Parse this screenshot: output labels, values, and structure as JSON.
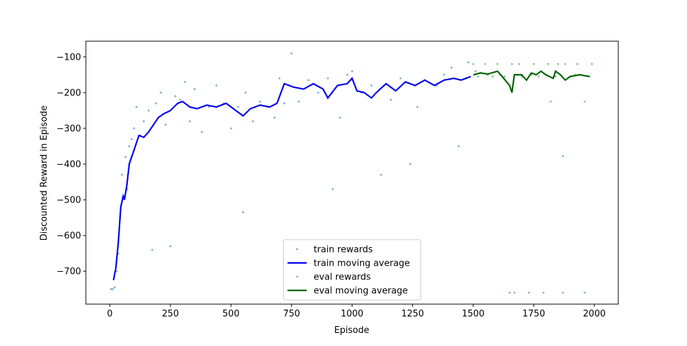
{
  "chart_data": {
    "type": "line",
    "xlabel": "Episode",
    "ylabel": "Discounted Reward in Episode",
    "xlim": [
      -99,
      2099
    ],
    "ylim": [
      -792,
      -56
    ],
    "xticks": [
      0,
      250,
      500,
      750,
      1000,
      1250,
      1500,
      1750,
      2000
    ],
    "yticks": [
      {
        "value": -100,
        "label": "−100"
      },
      {
        "value": -200,
        "label": "−200"
      },
      {
        "value": -300,
        "label": "−300"
      },
      {
        "value": -400,
        "label": "−400"
      },
      {
        "value": -500,
        "label": "−500"
      },
      {
        "value": -600,
        "label": "−600"
      },
      {
        "value": -700,
        "label": "−700"
      }
    ],
    "legend": "lower center",
    "series": [
      {
        "name": "train rewards",
        "type": "scatter",
        "color": "#1f77b4",
        "x": [
          5,
          12,
          20,
          28,
          35,
          42,
          50,
          58,
          65,
          72,
          80,
          90,
          100,
          110,
          125,
          140,
          160,
          175,
          190,
          210,
          230,
          250,
          270,
          290,
          310,
          330,
          350,
          380,
          410,
          440,
          470,
          500,
          530,
          550,
          560,
          590,
          620,
          650,
          680,
          700,
          720,
          740,
          750,
          780,
          820,
          860,
          900,
          920,
          950,
          980,
          1000,
          1040,
          1080,
          1120,
          1160,
          1200,
          1240,
          1270,
          1300,
          1350,
          1380,
          1410,
          1440,
          1470,
          1480
        ],
        "values": [
          -750,
          -750,
          -745,
          -700,
          -650,
          -550,
          -430,
          -490,
          -380,
          -470,
          -350,
          -330,
          -300,
          -240,
          -320,
          -280,
          -250,
          -640,
          -230,
          -200,
          -290,
          -630,
          -210,
          -220,
          -170,
          -280,
          -190,
          -310,
          -240,
          -180,
          -230,
          -300,
          -240,
          -535,
          -200,
          -280,
          -225,
          -240,
          -270,
          -160,
          -230,
          -180,
          -90,
          -225,
          -165,
          -200,
          -160,
          -470,
          -270,
          -150,
          -140,
          -200,
          -180,
          -430,
          -220,
          -160,
          -400,
          -240,
          -165,
          -180,
          -150,
          -130,
          -350,
          -160,
          -115
        ]
      },
      {
        "name": "train moving average",
        "type": "line",
        "color": "#0000ee",
        "x": [
          15,
          25,
          35,
          45,
          55,
          60,
          70,
          80,
          90,
          100,
          120,
          140,
          160,
          180,
          200,
          220,
          250,
          280,
          300,
          330,
          360,
          400,
          440,
          480,
          520,
          550,
          580,
          620,
          660,
          690,
          720,
          760,
          800,
          840,
          880,
          900,
          940,
          980,
          1000,
          1020,
          1050,
          1080,
          1100,
          1140,
          1180,
          1220,
          1260,
          1300,
          1340,
          1380,
          1420,
          1450,
          1490
        ],
        "values": [
          -725,
          -690,
          -620,
          -520,
          -490,
          -500,
          -460,
          -400,
          -380,
          -360,
          -320,
          -325,
          -310,
          -290,
          -270,
          -260,
          -250,
          -230,
          -225,
          -240,
          -245,
          -235,
          -240,
          -230,
          -250,
          -265,
          -245,
          -235,
          -240,
          -230,
          -175,
          -185,
          -190,
          -175,
          -190,
          -215,
          -180,
          -175,
          -160,
          -195,
          -200,
          -215,
          -200,
          -175,
          -195,
          -170,
          -180,
          -165,
          -180,
          -165,
          -160,
          -165,
          -155
        ]
      },
      {
        "name": "eval rewards",
        "type": "scatter",
        "color": "#2ca02c",
        "x": [
          1500,
          1520,
          1550,
          1580,
          1600,
          1630,
          1650,
          1660,
          1670,
          1700,
          1730,
          1750,
          1770,
          1790,
          1810,
          1820,
          1840,
          1870,
          1870,
          1880,
          1900,
          1930,
          1960,
          1960,
          1990,
          1510,
          1560,
          1610,
          1690,
          1740,
          1800,
          1850,
          1920,
          1980
        ],
        "values": [
          -120,
          -155,
          -120,
          -155,
          -120,
          -155,
          -760,
          -120,
          -760,
          -155,
          -760,
          -120,
          -155,
          -760,
          -120,
          -225,
          -155,
          -378,
          -760,
          -120,
          -155,
          -120,
          -225,
          -760,
          -120,
          -140,
          -150,
          -150,
          -120,
          -150,
          -150,
          -120,
          -150,
          -155
        ]
      },
      {
        "name": "eval moving average",
        "type": "line",
        "color": "#006400",
        "x": [
          1500,
          1530,
          1560,
          1600,
          1620,
          1650,
          1660,
          1670,
          1700,
          1720,
          1740,
          1760,
          1780,
          1800,
          1830,
          1840,
          1860,
          1880,
          1900,
          1940,
          1980
        ],
        "values": [
          -150,
          -145,
          -148,
          -140,
          -155,
          -180,
          -200,
          -150,
          -150,
          -165,
          -145,
          -150,
          -140,
          -150,
          -160,
          -140,
          -150,
          -165,
          -155,
          -150,
          -155
        ]
      }
    ]
  }
}
